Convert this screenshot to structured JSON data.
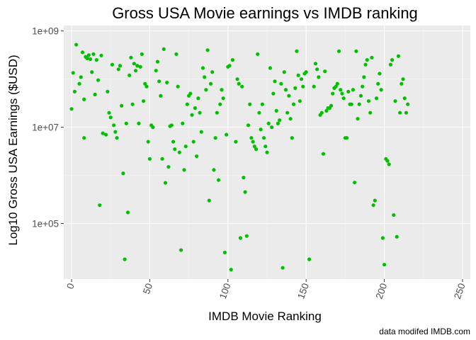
{
  "chart_data": {
    "type": "scatter",
    "title": "Gross USA Movie earnings vs IMDB ranking",
    "xlabel": "IMDB Movie Ranking",
    "ylabel": "Log10 Gross USA Earnings ($USD)",
    "caption": "data modifed IMDB.com",
    "y_scale": "log10",
    "xlim": [
      -5,
      255
    ],
    "ylim": [
      7000,
      1300000000
    ],
    "x_ticks": [
      0,
      50,
      100,
      150,
      200,
      250
    ],
    "x_tick_labels": [
      "0",
      "50",
      "100",
      "150",
      "200",
      "250"
    ],
    "y_ticks": [
      100000,
      10000000,
      1000000000
    ],
    "y_tick_labels": [
      "1e+05",
      "1e+07",
      "1e+09"
    ],
    "x_tick_rotation": "angled",
    "grid": true,
    "point_color": "#00c000",
    "panel_color": "#ebebeb",
    "points": [
      [
        0,
        24000000
      ],
      [
        1,
        135000000
      ],
      [
        2,
        55000000
      ],
      [
        3,
        520000000
      ],
      [
        5,
        80000000
      ],
      [
        6,
        110000000
      ],
      [
        7,
        360000000
      ],
      [
        8,
        6000000
      ],
      [
        8,
        38000000
      ],
      [
        9,
        290000000
      ],
      [
        10,
        270000000
      ],
      [
        11,
        315000000
      ],
      [
        12,
        260000000
      ],
      [
        13,
        140000000
      ],
      [
        14,
        330000000
      ],
      [
        15,
        48000000
      ],
      [
        16,
        250000000
      ],
      [
        17,
        95000000
      ],
      [
        18,
        240000,
        "x"
      ],
      [
        19,
        310000000
      ],
      [
        20,
        7500000
      ],
      [
        22,
        7000000
      ],
      [
        23,
        55000000
      ],
      [
        24,
        20000000
      ],
      [
        25,
        16000000
      ],
      [
        26,
        200000000
      ],
      [
        27,
        11000000
      ],
      [
        28,
        8000000
      ],
      [
        29,
        6000000
      ],
      [
        30,
        160000000
      ],
      [
        31,
        190000000
      ],
      [
        32,
        28000000
      ],
      [
        33,
        1100000
      ],
      [
        34,
        18000
      ],
      [
        35,
        12000000
      ],
      [
        36,
        170000
      ],
      [
        37,
        120000000
      ],
      [
        38,
        280000000
      ],
      [
        39,
        30000000
      ],
      [
        40,
        210000000
      ],
      [
        41,
        150000000
      ],
      [
        42,
        190000000
      ],
      [
        43,
        12000000
      ],
      [
        44,
        180000000
      ],
      [
        45,
        330000000
      ],
      [
        46,
        35000000
      ],
      [
        47,
        80000000
      ],
      [
        48,
        70000000
      ],
      [
        49,
        5000000
      ],
      [
        50,
        2200000
      ],
      [
        51,
        11000000
      ],
      [
        52,
        10000000
      ],
      [
        54,
        150000000
      ],
      [
        55,
        230000000
      ],
      [
        56,
        90000000
      ],
      [
        57,
        45000000
      ],
      [
        58,
        2200000
      ],
      [
        59,
        420000000
      ],
      [
        60,
        700000
      ],
      [
        61,
        85000000
      ],
      [
        62,
        1500000
      ],
      [
        63,
        10500000
      ],
      [
        64,
        11000000
      ],
      [
        65,
        5000000
      ],
      [
        66,
        3500000
      ],
      [
        67,
        330000000
      ],
      [
        68,
        70000000
      ],
      [
        69,
        3000000
      ],
      [
        70,
        28000
      ],
      [
        71,
        12000000
      ],
      [
        72,
        1300000
      ],
      [
        73,
        4000000
      ],
      [
        74,
        30000000
      ],
      [
        75,
        45000000
      ],
      [
        76,
        50000000
      ],
      [
        77,
        18000000
      ],
      [
        78,
        5000000
      ],
      [
        79,
        25000000
      ],
      [
        80,
        2500000
      ],
      [
        81,
        40000000
      ],
      [
        82,
        20000000
      ],
      [
        83,
        8000000
      ],
      [
        84,
        170000000
      ],
      [
        85,
        110000000
      ],
      [
        86,
        60000000
      ],
      [
        87,
        400000000
      ],
      [
        88,
        300000
      ],
      [
        89,
        80000000
      ],
      [
        90,
        140000000
      ],
      [
        91,
        1300000
      ],
      [
        92,
        6000000
      ],
      [
        93,
        20000000
      ],
      [
        94,
        800000
      ],
      [
        95,
        30000000
      ],
      [
        96,
        60000000
      ],
      [
        97,
        40000000
      ],
      [
        98,
        25000
      ],
      [
        99,
        7000000
      ],
      [
        100,
        180000000
      ],
      [
        101,
        190000000
      ],
      [
        102,
        11000
      ],
      [
        103,
        250000000
      ],
      [
        105,
        5000000
      ],
      [
        106,
        100000000
      ],
      [
        107,
        80000000
      ],
      [
        108,
        50000
      ],
      [
        109,
        70000000
      ],
      [
        110,
        900000
      ],
      [
        111,
        450000
      ],
      [
        112,
        55000
      ],
      [
        113,
        11000000
      ],
      [
        114,
        30000000
      ],
      [
        115,
        6000000
      ],
      [
        116,
        5000000
      ],
      [
        117,
        4000000
      ],
      [
        118,
        3500000
      ],
      [
        119,
        330000000
      ],
      [
        120,
        20000000
      ],
      [
        121,
        9000000
      ],
      [
        122,
        30000000
      ],
      [
        123,
        6000000
      ],
      [
        124,
        4000000
      ],
      [
        125,
        3000000
      ],
      [
        126,
        12000000
      ],
      [
        127,
        170000000
      ],
      [
        128,
        10000000
      ],
      [
        129,
        50000000
      ],
      [
        130,
        90000000
      ],
      [
        131,
        22000000
      ],
      [
        132,
        12000000
      ],
      [
        133,
        14000000
      ],
      [
        134,
        80000000
      ],
      [
        135,
        12000
      ],
      [
        136,
        140000000
      ],
      [
        137,
        60000000
      ],
      [
        138,
        20000000
      ],
      [
        139,
        45000000
      ],
      [
        140,
        15000000
      ],
      [
        141,
        6000000
      ],
      [
        142,
        30000000
      ],
      [
        143,
        65000000
      ],
      [
        144,
        380000000
      ],
      [
        145,
        120000000
      ],
      [
        146,
        35000000
      ],
      [
        147,
        100000000
      ],
      [
        148,
        70000000
      ],
      [
        149,
        130000000
      ],
      [
        150,
        140000000
      ],
      [
        152,
        18000
      ],
      [
        155,
        70000000
      ],
      [
        156,
        210000000
      ],
      [
        157,
        160000000
      ],
      [
        158,
        110000000
      ],
      [
        159,
        18000000
      ],
      [
        160,
        20000000
      ],
      [
        161,
        2800000
      ],
      [
        162,
        145000000
      ],
      [
        163,
        22000000
      ],
      [
        164,
        25000000
      ],
      [
        165,
        25000000
      ],
      [
        166,
        28000000
      ],
      [
        167,
        50000000
      ],
      [
        168,
        65000000
      ],
      [
        169,
        70000000
      ],
      [
        170,
        80000000
      ],
      [
        171,
        380000000
      ],
      [
        172,
        60000000
      ],
      [
        173,
        50000000
      ],
      [
        174,
        40000000
      ],
      [
        175,
        6000000
      ],
      [
        176,
        6000000
      ],
      [
        177,
        55000000
      ],
      [
        178,
        30000000
      ],
      [
        179,
        30000000
      ],
      [
        180,
        60000000
      ],
      [
        181,
        710000
      ],
      [
        182,
        380000000
      ],
      [
        183,
        15000000
      ],
      [
        184,
        30000000
      ],
      [
        185,
        45000000
      ],
      [
        186,
        70000000
      ],
      [
        187,
        110000000
      ],
      [
        188,
        200000000
      ],
      [
        189,
        250000000
      ],
      [
        190,
        35000000
      ],
      [
        191,
        20000000
      ],
      [
        192,
        280000000
      ],
      [
        193,
        240000
      ],
      [
        194,
        300000
      ],
      [
        195,
        40000000
      ],
      [
        196,
        80000000
      ],
      [
        197,
        130000000
      ],
      [
        198,
        60000000
      ],
      [
        199,
        50000
      ],
      [
        200,
        14000
      ],
      [
        201,
        2200000
      ],
      [
        202,
        2000000
      ],
      [
        203,
        1700000
      ],
      [
        204,
        200000000
      ],
      [
        205,
        250000000
      ],
      [
        206,
        150000
      ],
      [
        207,
        35000000
      ],
      [
        208,
        53000
      ],
      [
        209,
        300000000
      ],
      [
        210,
        20000000
      ],
      [
        211,
        80000000
      ],
      [
        212,
        100000000
      ],
      [
        213,
        40000000
      ],
      [
        214,
        20000000
      ],
      [
        215,
        30000000
      ]
    ]
  }
}
